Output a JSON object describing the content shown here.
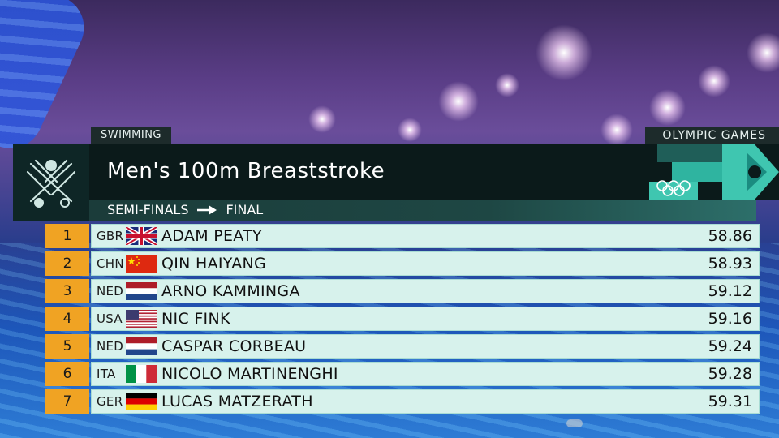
{
  "header": {
    "sport": "SWIMMING",
    "games": "OLYMPIC GAMES",
    "event_title": "Men's 100m Breaststroke",
    "round_from": "SEMI-FINALS",
    "round_to": "FINAL"
  },
  "icons": {
    "event": "breaststroke-swimmer-icon",
    "games_logo": "olympic-rings-icon",
    "arrow": "arrow-right-icon"
  },
  "colors": {
    "rank_bg": "#f0a323",
    "row_bg": "#d7f2ec",
    "banner_bg": "#0b1a1a",
    "accent_teal": "#2fb4a0"
  },
  "results": [
    {
      "rank": "1",
      "country": "GBR",
      "flag": "gbr-flag-icon",
      "name": "ADAM PEATY",
      "time": "58.86"
    },
    {
      "rank": "2",
      "country": "CHN",
      "flag": "chn-flag-icon",
      "name": "QIN HAIYANG",
      "time": "58.93"
    },
    {
      "rank": "3",
      "country": "NED",
      "flag": "ned-flag-icon",
      "name": "ARNO KAMMINGA",
      "time": "59.12"
    },
    {
      "rank": "4",
      "country": "USA",
      "flag": "usa-flag-icon",
      "name": "NIC FINK",
      "time": "59.16"
    },
    {
      "rank": "5",
      "country": "NED",
      "flag": "ned-flag-icon",
      "name": "CASPAR CORBEAU",
      "time": "59.24"
    },
    {
      "rank": "6",
      "country": "ITA",
      "flag": "ita-flag-icon",
      "name": "NICOLO MARTINENGHI",
      "time": "59.28"
    },
    {
      "rank": "7",
      "country": "GER",
      "flag": "ger-flag-icon",
      "name": "LUCAS MATZERATH",
      "time": "59.31"
    }
  ]
}
